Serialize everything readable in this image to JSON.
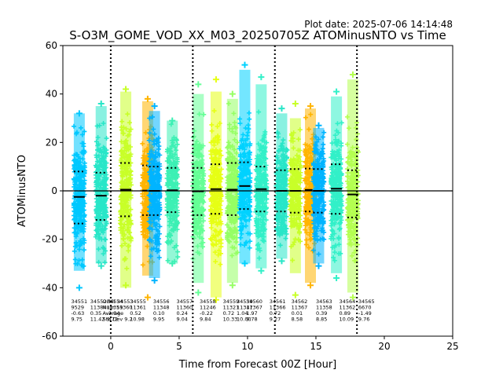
{
  "plot_date": "Plot date: 2025-07-06 14:14:48",
  "chart_data": {
    "type": "scatter",
    "title": "S-O3M_GOME_VOD_XX_M03_20250705Z ATOMinusNTO vs Time",
    "xlabel": "Time from Forecast 00Z [Hour]",
    "ylabel": "ATOMinusNTO",
    "xlim": [
      -3.5,
      25
    ],
    "ylim": [
      -60,
      60
    ],
    "xticks": [
      0,
      5,
      10,
      15,
      20,
      25
    ],
    "yticks": [
      -60,
      -40,
      -20,
      0,
      20,
      40,
      60
    ],
    "grid": false,
    "reference_lines": {
      "horizontal_y": 0,
      "vertical_dotted_x": [
        0,
        6,
        12,
        18
      ]
    },
    "series": [
      {
        "x": -2.3,
        "color": "#00c8ff",
        "ymin": -33,
        "ymax": 32,
        "mean": -2.5,
        "sd_upper": 8,
        "sd_lower": -13.5,
        "outlier_max": 32,
        "outlier_min": -40
      },
      {
        "x": -0.7,
        "color": "#28e6c8",
        "ymin": -30,
        "ymax": 35,
        "mean": -2.0,
        "sd_upper": 7.5,
        "sd_lower": -12,
        "outlier_max": 36,
        "outlier_min": -31
      },
      {
        "x": 1.1,
        "color": "#c8ff28",
        "ymin": -40,
        "ymax": 41,
        "mean": 0.5,
        "sd_upper": 11.5,
        "sd_lower": -10.5,
        "outlier_max": 42,
        "outlier_min": -39
      },
      {
        "x": 2.7,
        "color": "#ffb400",
        "ymin": -35,
        "ymax": 37,
        "mean": 0.1,
        "sd_upper": 10.5,
        "sd_lower": -10,
        "outlier_max": 38,
        "outlier_min": -44
      },
      {
        "x": 3.2,
        "color": "#00b4ff",
        "ymin": -36,
        "ymax": 33,
        "mean": 0.0,
        "sd_upper": 10,
        "sd_lower": -10,
        "outlier_max": 35,
        "outlier_min": -37
      },
      {
        "x": 4.5,
        "color": "#3cf0b4",
        "ymin": -30,
        "ymax": 29,
        "mean": 0.24,
        "sd_upper": 9.5,
        "sd_lower": -8.8,
        "outlier_max": 29,
        "outlier_min": -30
      },
      {
        "x": 6.4,
        "color": "#64ff96",
        "ymin": -38,
        "ymax": 40,
        "mean": -0.2,
        "sd_upper": 9.5,
        "sd_lower": -10,
        "outlier_max": 44,
        "outlier_min": -42
      },
      {
        "x": 7.7,
        "color": "#e6ff14",
        "ymin": -44,
        "ymax": 41,
        "mean": 0.72,
        "sd_upper": 11,
        "sd_lower": -9.5,
        "outlier_max": 46,
        "outlier_min": -45
      },
      {
        "x": 8.9,
        "color": "#96ff64",
        "ymin": -38,
        "ymax": 38,
        "mean": 0.5,
        "sd_upper": 11.5,
        "sd_lower": -10,
        "outlier_max": 40,
        "outlier_min": -39
      },
      {
        "x": 9.8,
        "color": "#00d2ff",
        "ymin": -30,
        "ymax": 50,
        "mean": 2.0,
        "sd_upper": 11.8,
        "sd_lower": -7.5,
        "outlier_max": 52,
        "outlier_min": -30
      },
      {
        "x": 11.0,
        "color": "#32f0c8",
        "ymin": -32,
        "ymax": 44,
        "mean": 0.72,
        "sd_upper": 10,
        "sd_lower": -8.5,
        "outlier_max": 47,
        "outlier_min": -33
      },
      {
        "x": 12.5,
        "color": "#28e6c8",
        "ymin": -28,
        "ymax": 32,
        "mean": 0.0,
        "sd_upper": 8.5,
        "sd_lower": -8.5,
        "outlier_max": 34,
        "outlier_min": -29
      },
      {
        "x": 13.5,
        "color": "#c8ff28",
        "ymin": -34,
        "ymax": 30,
        "mean": 0.0,
        "sd_upper": 9,
        "sd_lower": -9,
        "outlier_max": 36,
        "outlier_min": -43
      },
      {
        "x": 14.6,
        "color": "#ffb400",
        "ymin": -38,
        "ymax": 34,
        "mean": 0.39,
        "sd_upper": 9.2,
        "sd_lower": -8.5,
        "outlier_max": 35,
        "outlier_min": -39
      },
      {
        "x": 15.2,
        "color": "#00b4ff",
        "ymin": -30,
        "ymax": 26,
        "mean": 0.0,
        "sd_upper": 9,
        "sd_lower": -9,
        "outlier_max": 27,
        "outlier_min": -31
      },
      {
        "x": 16.5,
        "color": "#32f0c8",
        "ymin": -34,
        "ymax": 39,
        "mean": 0.89,
        "sd_upper": 11,
        "sd_lower": -9.5,
        "outlier_max": 41,
        "outlier_min": -36
      },
      {
        "x": 17.7,
        "color": "#b4ff50",
        "ymin": -42,
        "ymax": 46,
        "mean": -1.49,
        "sd_upper": 8.5,
        "sd_lower": -11,
        "outlier_max": 48,
        "outlier_min": -44
      }
    ],
    "annotations": [
      {
        "x": -2.9,
        "lines": [
          "34551",
          "9529",
          "-0.63",
          "9.75"
        ]
      },
      {
        "x": -1.5,
        "lines": [
          "34552",
          "11384",
          "0.35",
          "11.42"
        ]
      },
      {
        "x": -0.6,
        "lines": [
          "Orbit 34553",
          "Num 11360",
          "Average",
          "Std Dev 9.2"
        ]
      },
      {
        "x": -0.3,
        "lines": [
          "34554",
          "11359",
          "-2.04",
          "9.72"
        ]
      },
      {
        "x": 1.4,
        "lines": [
          "34555",
          "11361",
          "0.52",
          "10.98"
        ]
      },
      {
        "x": 3.1,
        "lines": [
          "34556",
          "11348",
          "0.10",
          "9.95"
        ]
      },
      {
        "x": 4.8,
        "lines": [
          "34557",
          "11360",
          "0.24",
          "9.04"
        ]
      },
      {
        "x": 6.5,
        "lines": [
          "34558",
          "11246",
          "-0.22",
          "9.84"
        ]
      },
      {
        "x": 8.2,
        "lines": [
          "34559",
          "11321",
          "0.72",
          "10.33"
        ]
      },
      {
        "x": 9.2,
        "lines": [
          "34559",
          "11347",
          "1.04",
          "10.00"
        ]
      },
      {
        "x": 9.9,
        "lines": [
          "34560",
          "11367",
          "1.97",
          "9.78"
        ]
      },
      {
        "x": 11.6,
        "lines": [
          "34561",
          "11366",
          "0.72",
          "9.27"
        ]
      },
      {
        "x": 13.2,
        "lines": [
          "34562",
          "11367",
          "0.01",
          "8.58"
        ]
      },
      {
        "x": 15.0,
        "lines": [
          "34563",
          "11358",
          "0.39",
          "8.85"
        ]
      },
      {
        "x": 16.7,
        "lines": [
          "34564",
          "11362",
          "0.89",
          "10.09"
        ]
      },
      {
        "x": 18.1,
        "lines": [
          "34565",
          "6670",
          "-1.49",
          "9.76"
        ]
      }
    ]
  }
}
